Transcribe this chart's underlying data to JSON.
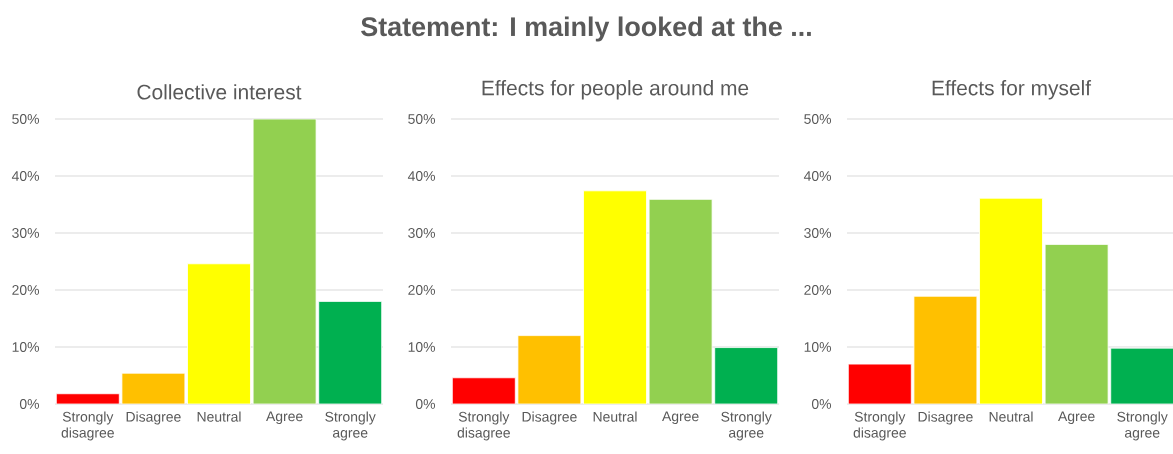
{
  "chart_data": [
    {
      "type": "bar",
      "title": "Collective interest",
      "annotations": [
        "Statement: I mainly looked at the ..."
      ],
      "categories": [
        "Strongly disagree",
        "Disagree",
        "Neutral",
        "Agree",
        "Strongly agree"
      ],
      "values": [
        1.8,
        5.4,
        24.6,
        50,
        18.0
      ],
      "colors": [
        "#ff0000",
        "#ffc000",
        "#ffff00",
        "#92d050",
        "#00b050"
      ],
      "ylim": [
        0,
        50
      ],
      "yticks": [
        {
          "value": 0,
          "label": "0%"
        },
        {
          "value": 10,
          "label": "10%"
        },
        {
          "value": 20,
          "label": "20%"
        },
        {
          "value": 30,
          "label": "30%"
        },
        {
          "value": 40,
          "label": "40%"
        },
        {
          "value": 50,
          "label": "50%"
        }
      ],
      "grid": "y"
    },
    {
      "type": "bar",
      "title": "Effects for people around me",
      "categories": [
        "Strongly disagree",
        "Disagree",
        "Neutral",
        "Agree",
        "Strongly agree"
      ],
      "values": [
        4.6,
        12.0,
        37.4,
        35.9,
        9.9
      ],
      "colors": [
        "#ff0000",
        "#ffc000",
        "#ffff00",
        "#92d050",
        "#00b050"
      ],
      "ylim": [
        0,
        50
      ],
      "yticks": [
        {
          "value": 0,
          "label": "0%"
        },
        {
          "value": 10,
          "label": "10%"
        },
        {
          "value": 20,
          "label": "20%"
        },
        {
          "value": 30,
          "label": "30%"
        },
        {
          "value": 40,
          "label": "40%"
        },
        {
          "value": 50,
          "label": "50%"
        }
      ],
      "grid": "y"
    },
    {
      "type": "bar",
      "title": "Effects for myself",
      "categories": [
        "Strongly disagree",
        "Disagree",
        "Neutral",
        "Agree",
        "Strongly agree"
      ],
      "values": [
        7.0,
        18.9,
        36.1,
        28.0,
        9.8
      ],
      "colors": [
        "#ff0000",
        "#ffc000",
        "#ffff00",
        "#92d050",
        "#00b050"
      ],
      "ylim": [
        0,
        50
      ],
      "yticks": [
        {
          "value": 0,
          "label": "0%"
        },
        {
          "value": 10,
          "label": "10%"
        },
        {
          "value": 20,
          "label": "20%"
        },
        {
          "value": 30,
          "label": "30%"
        },
        {
          "value": 40,
          "label": "40%"
        },
        {
          "value": 50,
          "label": "50%"
        }
      ],
      "grid": "y"
    }
  ]
}
